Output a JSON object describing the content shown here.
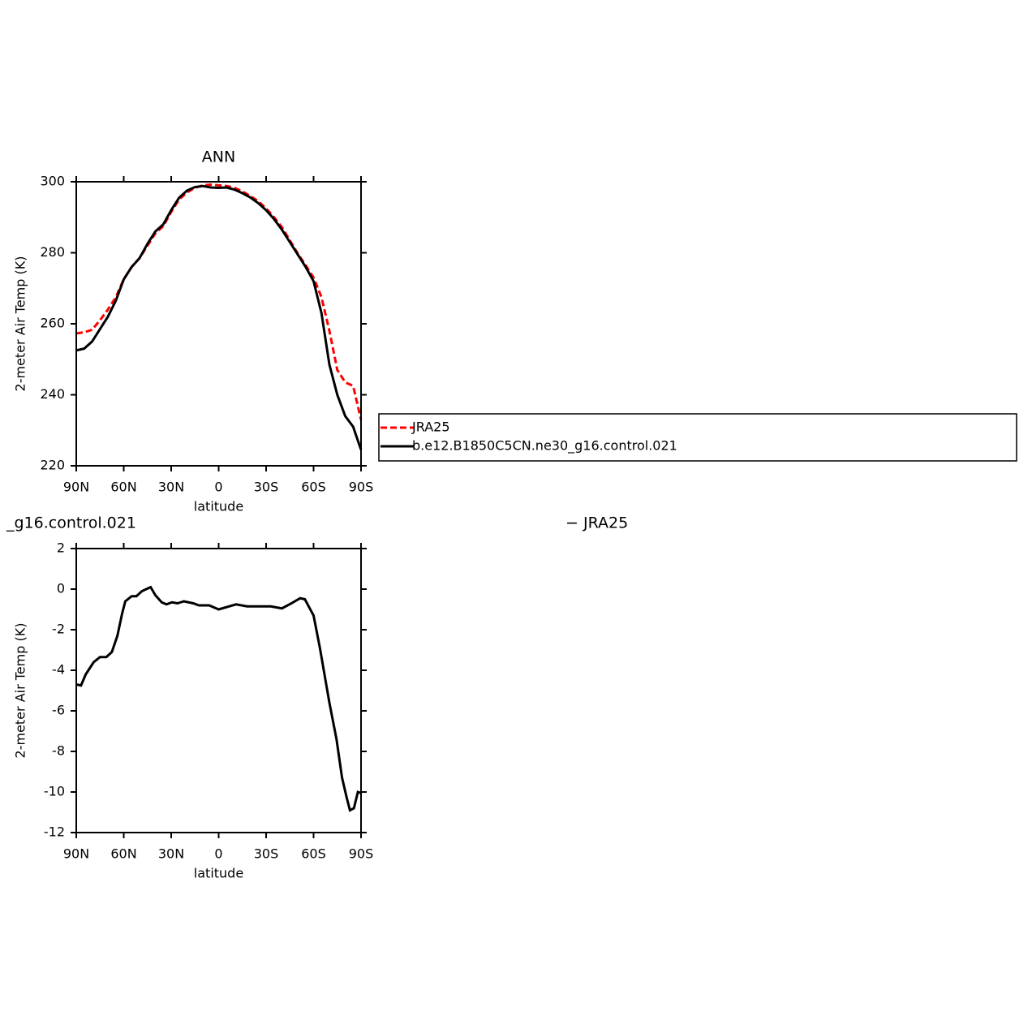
{
  "chart_data": [
    {
      "type": "line",
      "title": "ANN",
      "xlabel": "latitude",
      "ylabel": "2-meter Air Temp (K)",
      "x": [
        90,
        85,
        80,
        75,
        70,
        65,
        60,
        55,
        50,
        45,
        40,
        35,
        30,
        25,
        20,
        15,
        10,
        5,
        0,
        -5,
        -10,
        -15,
        -20,
        -25,
        -30,
        -35,
        -40,
        -45,
        -50,
        -55,
        -60,
        -65,
        -70,
        -75,
        -80,
        -85,
        -90
      ],
      "series": [
        {
          "name": "JRA25",
          "color": "#ff0000",
          "linestyle": "dashed",
          "values": [
            257.3,
            257.6,
            258.3,
            261,
            264,
            267.5,
            272.5,
            276,
            278.5,
            282,
            285.5,
            287.5,
            291.5,
            295,
            297,
            298.3,
            299,
            299.2,
            299,
            298.8,
            298.3,
            297.3,
            296,
            294.5,
            292.5,
            290,
            287.2,
            283.5,
            279.8,
            276.5,
            273,
            267.5,
            258,
            247,
            243.5,
            242.5,
            233
          ]
        },
        {
          "name": "b.e12.B1850C5CN.ne30_g16.control.021",
          "color": "#000000",
          "linestyle": "solid",
          "values": [
            252.5,
            253,
            255,
            258.5,
            262,
            266.5,
            272.5,
            276,
            278.5,
            282.5,
            286,
            288,
            292,
            295.5,
            297.5,
            298.5,
            298.8,
            298.4,
            298.3,
            298.4,
            297.8,
            296.8,
            295.6,
            294,
            292,
            289.5,
            286.5,
            283,
            279.5,
            276,
            272,
            263,
            248.5,
            240,
            234,
            231,
            224.5
          ]
        }
      ],
      "xlim": [
        90,
        -90
      ],
      "xticks": [
        {
          "value": 90,
          "label": "90N"
        },
        {
          "value": 60,
          "label": "60N"
        },
        {
          "value": 30,
          "label": "30N"
        },
        0,
        {
          "value": -30,
          "label": "30S"
        },
        {
          "value": -60,
          "label": "60S"
        },
        {
          "value": -90,
          "label": "90S"
        }
      ],
      "ylim": [
        220,
        300
      ],
      "yticks": [
        220,
        240,
        260,
        280,
        300
      ],
      "legend": "right"
    },
    {
      "type": "line",
      "left_title": "_g16.control.021",
      "right_title": "− JRA25",
      "xlabel": "latitude",
      "ylabel": "2-meter Air Temp (K)",
      "x": [
        90,
        87,
        84,
        79,
        75,
        71,
        67.5,
        64,
        61,
        59,
        55,
        52,
        48.5,
        43,
        40,
        36,
        33,
        29.5,
        26,
        22,
        16,
        12.5,
        6,
        0,
        -11,
        -18,
        -26,
        -33,
        -40,
        -46,
        -51.5,
        -54.5,
        -60,
        -64,
        -70,
        -74.5,
        -78,
        -81,
        -83,
        -85.5,
        -88,
        -90
      ],
      "series": [
        {
          "color": "#000000",
          "linestyle": "solid",
          "values": [
            -4.7,
            -4.75,
            -4.2,
            -3.6,
            -3.35,
            -3.35,
            -3.1,
            -2.3,
            -1.2,
            -0.6,
            -0.35,
            -0.35,
            -0.1,
            0.1,
            -0.3,
            -0.65,
            -0.75,
            -0.65,
            -0.7,
            -0.6,
            -0.7,
            -0.8,
            -0.8,
            -1.0,
            -0.75,
            -0.85,
            -0.85,
            -0.85,
            -0.95,
            -0.7,
            -0.45,
            -0.5,
            -1.3,
            -2.9,
            -5.6,
            -7.4,
            -9.3,
            -10.3,
            -10.9,
            -10.8,
            -10.0,
            -10.05
          ]
        }
      ],
      "xlim": [
        90,
        -90
      ],
      "xticks": [
        {
          "value": 90,
          "label": "90N"
        },
        {
          "value": 60,
          "label": "60N"
        },
        {
          "value": 30,
          "label": "30N"
        },
        0,
        {
          "value": -30,
          "label": "30S"
        },
        {
          "value": -60,
          "label": "60S"
        },
        {
          "value": -90,
          "label": "90S"
        }
      ],
      "ylim": [
        -12,
        2
      ],
      "yticks": [
        -12,
        -10,
        -8,
        -6,
        -4,
        -2,
        0,
        2
      ]
    }
  ]
}
